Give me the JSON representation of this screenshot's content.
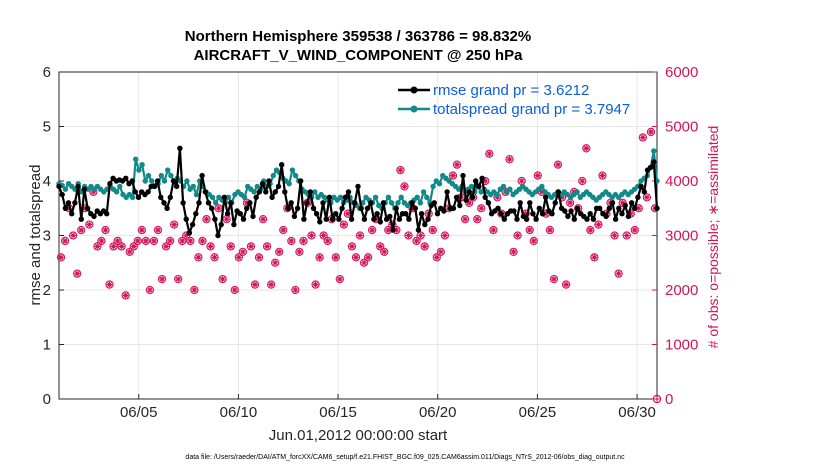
{
  "chart_data": {
    "type": "line",
    "title_line1": "Northern Hemisphere 359538 / 363786 = 98.832%",
    "title_line2": "AIRCRAFT_V_WIND_COMPONENT @ 250 hPa",
    "xlabel": "Jun.01,2012 00:00:00 start",
    "ylabel": "rmse and totalspread",
    "ylabel_right": "# of obs: o=possible; ∗=assimilated",
    "xlim": [
      1,
      31
    ],
    "ylim": [
      0,
      6
    ],
    "ylim_right": [
      0,
      6000
    ],
    "x_ticks": [
      5,
      10,
      15,
      20,
      25,
      30
    ],
    "x_tick_labels": [
      "06/05",
      "06/10",
      "06/15",
      "06/20",
      "06/25",
      "06/30"
    ],
    "y_ticks": [
      0,
      1,
      2,
      3,
      4,
      5,
      6
    ],
    "y_tick_labels": [
      "0",
      "1",
      "2",
      "3",
      "4",
      "5",
      "6"
    ],
    "y_ticks_right": [
      0,
      1000,
      2000,
      3000,
      4000,
      5000,
      6000
    ],
    "y_tick_labels_right": [
      "0",
      "1000",
      "2000",
      "3000",
      "4000",
      "5000",
      "6000"
    ],
    "grid": true,
    "legend_position": "top-right",
    "colors": {
      "rmse": "#000000",
      "totalspread": "#128a8a",
      "obs": "#d4145a",
      "right_axis": "#d4145a",
      "legend_text": "#0a5fd6"
    },
    "series": [
      {
        "name": "rmse grand pr = 3.6212",
        "color": "#000000",
        "marker": "circle",
        "values": [
          3.9,
          3.75,
          3.5,
          3.6,
          3.4,
          3.6,
          3.9,
          3.3,
          3.85,
          3.5,
          3.4,
          3.35,
          3.45,
          3.4,
          3.45,
          3.4,
          3.95,
          4.05,
          4.0,
          4.02,
          4.0,
          4.05,
          3.95,
          4.0,
          3.8,
          3.7,
          3.8,
          3.75,
          3.8,
          3.9,
          3.9,
          4.0,
          3.7,
          3.6,
          3.5,
          3.7,
          4.0,
          3.9,
          4.6,
          3.6,
          3.3,
          3.05,
          3.2,
          3.4,
          3.6,
          4.1,
          3.8,
          3.6,
          3.5,
          3.3,
          3.0,
          3.2,
          3.7,
          3.4,
          3.6,
          3.2,
          3.45,
          3.4,
          3.3,
          3.5,
          3.6,
          3.35,
          3.7,
          3.8,
          3.95,
          3.8,
          4.0,
          3.7,
          3.8,
          3.9,
          4.3,
          3.8,
          3.5,
          3.6,
          3.35,
          3.5,
          4.0,
          3.3,
          3.6,
          3.8,
          3.5,
          3.4,
          3.25,
          3.6,
          3.3,
          3.7,
          3.3,
          3.4,
          3.3,
          3.5,
          3.7,
          3.8,
          3.3,
          3.6,
          3.9,
          3.5,
          3.3,
          3.5,
          3.6,
          3.3,
          3.4,
          3.25,
          3.6,
          3.3,
          3.35,
          3.1,
          3.5,
          3.3,
          3.4,
          3.4,
          3.3,
          3.6,
          3.5,
          3.1,
          3.4,
          3.2,
          3.3,
          3.55,
          3.6,
          3.4,
          3.5,
          3.45,
          3.8,
          3.5,
          3.5,
          3.7,
          3.55,
          4.1,
          3.65,
          3.8,
          3.7,
          4.0,
          3.9,
          4.05,
          3.7,
          3.6,
          3.4,
          3.45,
          3.5,
          3.4,
          3.3,
          3.4,
          3.45,
          3.45,
          3.3,
          3.6,
          3.35,
          3.3,
          3.6,
          3.4,
          3.3,
          3.5,
          3.4,
          3.7,
          3.45,
          3.4,
          3.6,
          3.8,
          3.5,
          3.45,
          3.35,
          3.45,
          3.3,
          3.5,
          3.4,
          3.35,
          3.3,
          3.4,
          3.3,
          3.5,
          3.5,
          3.4,
          3.35,
          3.5,
          3.6,
          3.3,
          3.5,
          3.4,
          3.55,
          3.35,
          3.6,
          3.5,
          3.7,
          3.9,
          3.8,
          4.2,
          4.25,
          4.35,
          3.5
        ]
      },
      {
        "name": "totalspread grand pr = 3.7947",
        "color": "#128a8a",
        "marker": "circle",
        "values": [
          3.95,
          3.92,
          3.85,
          3.95,
          3.9,
          3.85,
          3.95,
          3.8,
          3.9,
          3.85,
          3.9,
          3.85,
          3.9,
          3.85,
          3.8,
          3.85,
          3.9,
          3.85,
          3.8,
          3.9,
          3.75,
          3.7,
          3.75,
          3.7,
          4.4,
          4.2,
          4.3,
          4.0,
          4.1,
          4.0,
          3.9,
          3.95,
          4.1,
          4.0,
          4.2,
          4.1,
          4.0,
          4.05,
          4.0,
          3.9,
          4.0,
          3.85,
          3.9,
          3.75,
          4.0,
          3.9,
          3.8,
          3.75,
          3.7,
          3.6,
          3.7,
          3.65,
          3.6,
          3.7,
          3.6,
          3.75,
          3.8,
          3.75,
          3.7,
          3.9,
          3.85,
          3.8,
          3.9,
          3.85,
          4.0,
          3.9,
          3.95,
          4.1,
          4.2,
          4.15,
          4.05,
          4.0,
          3.95,
          4.2,
          4.1,
          4.0,
          3.85,
          3.8,
          3.75,
          3.7,
          3.8,
          3.7,
          3.75,
          3.7,
          3.65,
          3.6,
          3.7,
          3.65,
          3.7,
          3.6,
          3.65,
          3.7,
          3.6,
          3.55,
          3.5,
          3.6,
          3.7,
          3.65,
          3.6,
          3.7,
          3.55,
          3.5,
          3.6,
          3.7,
          3.6,
          3.5,
          3.6,
          3.7,
          3.6,
          3.55,
          3.6,
          3.65,
          3.7,
          3.6,
          3.8,
          3.7,
          3.6,
          3.9,
          4.0,
          3.95,
          4.1,
          4.05,
          4.0,
          3.95,
          3.9,
          3.85,
          3.9,
          3.8,
          3.85,
          3.9,
          3.8,
          3.9,
          3.8,
          3.85,
          3.8,
          3.75,
          3.8,
          3.75,
          3.85,
          3.9,
          3.8,
          3.85,
          3.75,
          3.8,
          3.85,
          3.9,
          3.85,
          3.8,
          3.75,
          3.8,
          3.85,
          3.9,
          3.8,
          3.75,
          3.7,
          3.75,
          3.8,
          3.75,
          3.8,
          3.75,
          3.7,
          3.75,
          3.8,
          3.7,
          3.75,
          3.8,
          3.75,
          3.7,
          3.65,
          3.7,
          3.75,
          3.8,
          3.75,
          3.7,
          3.75,
          3.7,
          3.75,
          3.8,
          3.75,
          3.8,
          3.85,
          3.9,
          4.0,
          4.05,
          4.1,
          4.25,
          4.55,
          4.0
        ]
      }
    ],
    "obs_possible": [
      2600,
      2900,
      3500,
      3000,
      2300,
      3100,
      3500,
      3200,
      3800,
      2800,
      2900,
      3100,
      2100,
      2800,
      2900,
      2800,
      1900,
      2700,
      2800,
      2900,
      3100,
      2900,
      2000,
      2900,
      3100,
      2200,
      2800,
      2900,
      3200,
      2200,
      2900,
      3000,
      2900,
      2000,
      2600,
      2900,
      3300,
      2800,
      2600,
      3500,
      2200,
      3300,
      2800,
      2000,
      2600,
      2700,
      3600,
      2800,
      2100,
      2600,
      3300,
      2800,
      2100,
      2500,
      2700,
      3100,
      3500,
      2900,
      2000,
      2700,
      2900,
      3600,
      3000,
      2100,
      2600,
      3000,
      2900,
      3300,
      2600,
      2200,
      3200,
      3400,
      2800,
      2600,
      3000,
      2500,
      2600,
      3100,
      3300,
      2800,
      2700,
      3100,
      3200,
      3100,
      4200,
      3900,
      3000,
      3500,
      2900,
      3000,
      2800,
      3400,
      3100,
      2600,
      2700,
      3000,
      3500,
      4100,
      4300,
      3700,
      3300,
      3600,
      3700,
      3300,
      3500,
      4000,
      4500,
      3100,
      3700,
      3400,
      3800,
      4400,
      2700,
      3000,
      4000,
      3400,
      3100,
      2900,
      4100,
      3800,
      3400,
      3100,
      2200,
      4300,
      3700,
      2100,
      3600,
      3800,
      3500,
      4000,
      4600,
      3100,
      2600,
      3200,
      4100,
      3400,
      3600,
      3000,
      2300,
      3600,
      3000,
      3400,
      3100,
      3500,
      4800,
      3700,
      4900,
      3500
    ],
    "footer": "data file: /Users/raeder/DAI/ATM_forcXX/CAM6_setup/f.e21.FHIST_BGC.f09_025.CAM6assim.011/Diags_NTrS_2012-06/obs_diag_output.nc"
  }
}
